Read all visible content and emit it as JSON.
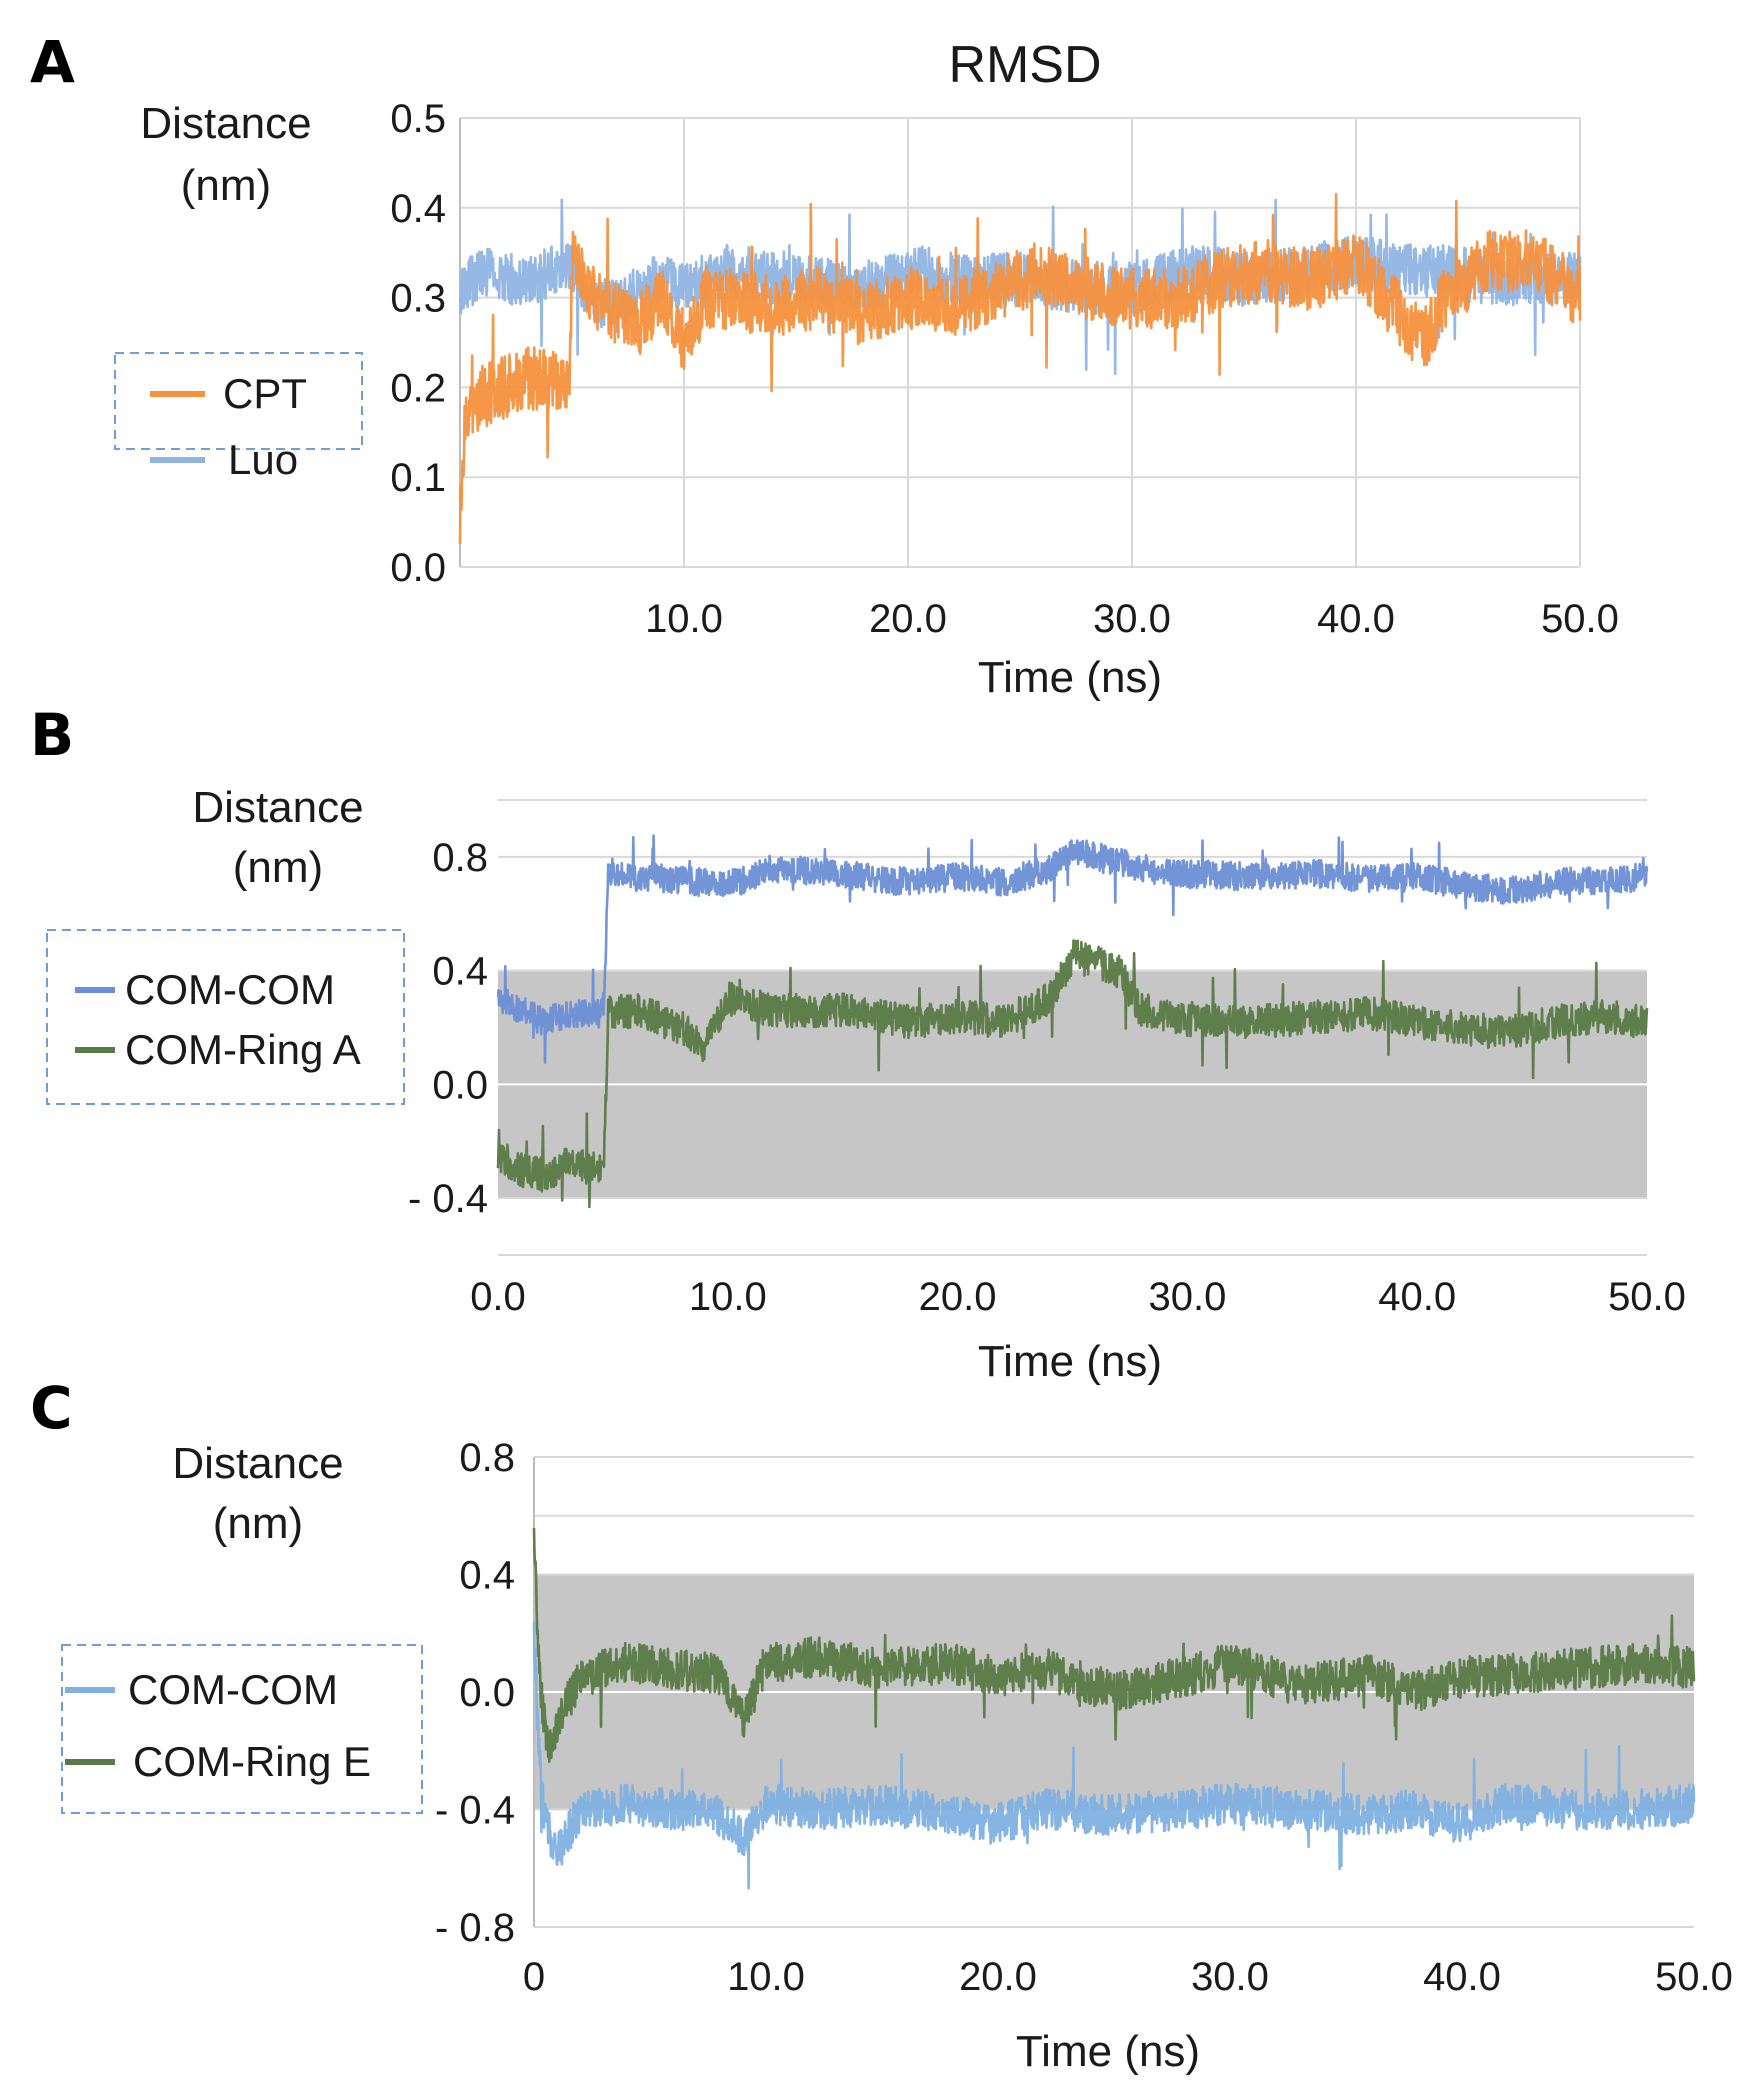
{
  "chart_data": [
    {
      "panel": "A",
      "type": "line",
      "title": "RMSD",
      "ylabel_line1": "Distance",
      "ylabel_line2": "(nm)",
      "xlabel": "Time (ns)",
      "xlim": [
        0,
        50
      ],
      "ylim": [
        0.0,
        0.5
      ],
      "xticks": [
        10,
        20,
        30,
        40,
        50
      ],
      "xtick_labels": [
        "10.0",
        "20.0",
        "30.0",
        "40.0",
        "50.0"
      ],
      "yticks": [
        0.0,
        0.1,
        0.2,
        0.3,
        0.4,
        0.5
      ],
      "ytick_labels": [
        "0.0",
        "0.1",
        "0.2",
        "0.3",
        "0.4",
        "0.5"
      ],
      "shaded_band": null,
      "legend": "left",
      "series": [
        {
          "name": "Luo",
          "color": "#8fb4e3",
          "x": [
            0,
            0.5,
            1,
            2,
            3,
            4,
            5,
            6,
            7,
            8,
            9,
            10,
            12,
            15,
            18,
            20,
            22,
            25,
            28,
            30,
            33,
            35,
            38,
            40,
            42,
            44,
            46,
            48,
            50
          ],
          "y": [
            0.3,
            0.32,
            0.33,
            0.32,
            0.32,
            0.33,
            0.33,
            0.3,
            0.29,
            0.31,
            0.32,
            0.31,
            0.33,
            0.32,
            0.31,
            0.33,
            0.32,
            0.32,
            0.31,
            0.31,
            0.33,
            0.32,
            0.33,
            0.34,
            0.33,
            0.33,
            0.32,
            0.32,
            0.32
          ],
          "noise": 0.03
        },
        {
          "name": "CPT",
          "color": "#f5913e",
          "x": [
            0,
            0.2,
            0.5,
            1,
            2,
            3,
            4.9,
            5,
            6,
            7,
            8,
            9,
            10,
            11,
            12,
            14,
            16,
            18,
            20,
            22,
            24,
            26,
            28,
            30,
            32,
            34,
            36,
            38,
            40,
            41,
            42,
            43,
            44,
            45,
            46,
            48,
            50
          ],
          "y": [
            0.05,
            0.15,
            0.17,
            0.19,
            0.2,
            0.21,
            0.21,
            0.34,
            0.3,
            0.28,
            0.27,
            0.3,
            0.25,
            0.3,
            0.3,
            0.29,
            0.3,
            0.28,
            0.3,
            0.29,
            0.31,
            0.33,
            0.31,
            0.3,
            0.3,
            0.32,
            0.33,
            0.32,
            0.34,
            0.31,
            0.28,
            0.25,
            0.3,
            0.32,
            0.34,
            0.34,
            0.3
          ],
          "noise": 0.035
        }
      ]
    },
    {
      "panel": "B",
      "type": "line",
      "title": "",
      "ylabel_line1": "Distance",
      "ylabel_line2": "(nm)",
      "xlabel": "Time (ns)",
      "xlim": [
        0,
        50
      ],
      "ylim": [
        -0.6,
        1.0
      ],
      "xticks": [
        0,
        10,
        20,
        30,
        40,
        50
      ],
      "xtick_labels": [
        "0.0",
        "10.0",
        "20.0",
        "30.0",
        "40.0",
        "50.0"
      ],
      "yticks": [
        -0.4,
        0.0,
        0.4,
        0.8
      ],
      "ytick_labels": [
        "- 0.4",
        "0.0",
        "0.4",
        "0.8"
      ],
      "gridlines": [
        -0.6,
        -0.4,
        0.0,
        0.4,
        0.8,
        1.0
      ],
      "shaded_band": [
        -0.4,
        0.4
      ],
      "legend": "left",
      "series": [
        {
          "name": "COM-COM",
          "color": "#6b8fd6",
          "x": [
            0,
            1,
            2,
            3,
            4.6,
            4.8,
            6,
            8,
            10,
            12,
            15,
            18,
            20,
            22,
            24,
            25,
            26,
            28,
            30,
            33,
            36,
            38,
            40,
            42,
            44,
            46,
            48,
            50
          ],
          "y": [
            0.3,
            0.26,
            0.22,
            0.25,
            0.25,
            0.75,
            0.73,
            0.72,
            0.7,
            0.76,
            0.74,
            0.71,
            0.73,
            0.71,
            0.76,
            0.82,
            0.8,
            0.76,
            0.74,
            0.73,
            0.74,
            0.72,
            0.73,
            0.7,
            0.68,
            0.71,
            0.72,
            0.73
          ],
          "noise": 0.05
        },
        {
          "name": "COM-Ring A",
          "color": "#587a46",
          "x": [
            0,
            1,
            2,
            3,
            4.6,
            4.8,
            6,
            8,
            9,
            10,
            12,
            15,
            18,
            20,
            22,
            24,
            25,
            26,
            27,
            28,
            30,
            33,
            36,
            38,
            40,
            42,
            44,
            46,
            48,
            50
          ],
          "y": [
            -0.25,
            -0.3,
            -0.32,
            -0.28,
            -0.3,
            0.25,
            0.26,
            0.2,
            0.12,
            0.3,
            0.26,
            0.26,
            0.22,
            0.24,
            0.22,
            0.3,
            0.45,
            0.43,
            0.4,
            0.26,
            0.23,
            0.22,
            0.24,
            0.25,
            0.22,
            0.2,
            0.18,
            0.22,
            0.24,
            0.22
          ],
          "noise": 0.06
        }
      ]
    },
    {
      "panel": "C",
      "type": "line",
      "title": "",
      "ylabel_line1": "Distance",
      "ylabel_line2": "(nm)",
      "xlabel": "Time (ns)",
      "xlim": [
        0,
        50
      ],
      "ylim": [
        -0.8,
        0.8
      ],
      "xticks": [
        0,
        10,
        20,
        30,
        40,
        50
      ],
      "xtick_labels": [
        "0",
        "10.0",
        "20.0",
        "30.0",
        "40.0",
        "50.0"
      ],
      "yticks": [
        -0.8,
        -0.4,
        0.0,
        0.4,
        0.8
      ],
      "ytick_labels": [
        "- 0.8",
        "- 0.4",
        "0.0",
        "0.4",
        "0.8"
      ],
      "gridlines": [
        -0.8,
        -0.4,
        0.0,
        0.4,
        0.6,
        0.8
      ],
      "shaded_band": [
        -0.4,
        0.4
      ],
      "legend": "left",
      "series": [
        {
          "name": "COM-COM",
          "color": "#7fb1e2",
          "x": [
            0,
            0.2,
            0.5,
            1,
            2,
            4,
            6,
            8,
            9,
            10,
            12,
            15,
            18,
            20,
            22,
            25,
            28,
            30,
            33,
            36,
            38,
            40,
            42,
            45,
            48,
            50
          ],
          "y": [
            0.2,
            -0.2,
            -0.45,
            -0.55,
            -0.4,
            -0.38,
            -0.4,
            -0.42,
            -0.5,
            -0.38,
            -0.4,
            -0.38,
            -0.42,
            -0.45,
            -0.4,
            -0.42,
            -0.4,
            -0.38,
            -0.4,
            -0.42,
            -0.4,
            -0.45,
            -0.38,
            -0.4,
            -0.4,
            -0.38
          ],
          "noise": 0.07
        },
        {
          "name": "COM-Ring E",
          "color": "#587a46",
          "x": [
            0,
            0.1,
            0.3,
            0.6,
            1,
            2,
            4,
            6,
            8,
            9,
            10,
            12,
            15,
            18,
            20,
            22,
            25,
            28,
            30,
            33,
            36,
            38,
            40,
            42,
            45,
            48,
            50
          ],
          "y": [
            0.6,
            0.3,
            0.0,
            -0.2,
            -0.1,
            0.05,
            0.1,
            0.08,
            0.06,
            -0.1,
            0.1,
            0.12,
            0.08,
            0.1,
            0.05,
            0.08,
            0.0,
            0.05,
            0.1,
            0.02,
            0.06,
            0.0,
            0.05,
            0.06,
            0.08,
            0.1,
            0.08
          ],
          "noise": 0.07
        }
      ]
    }
  ]
}
